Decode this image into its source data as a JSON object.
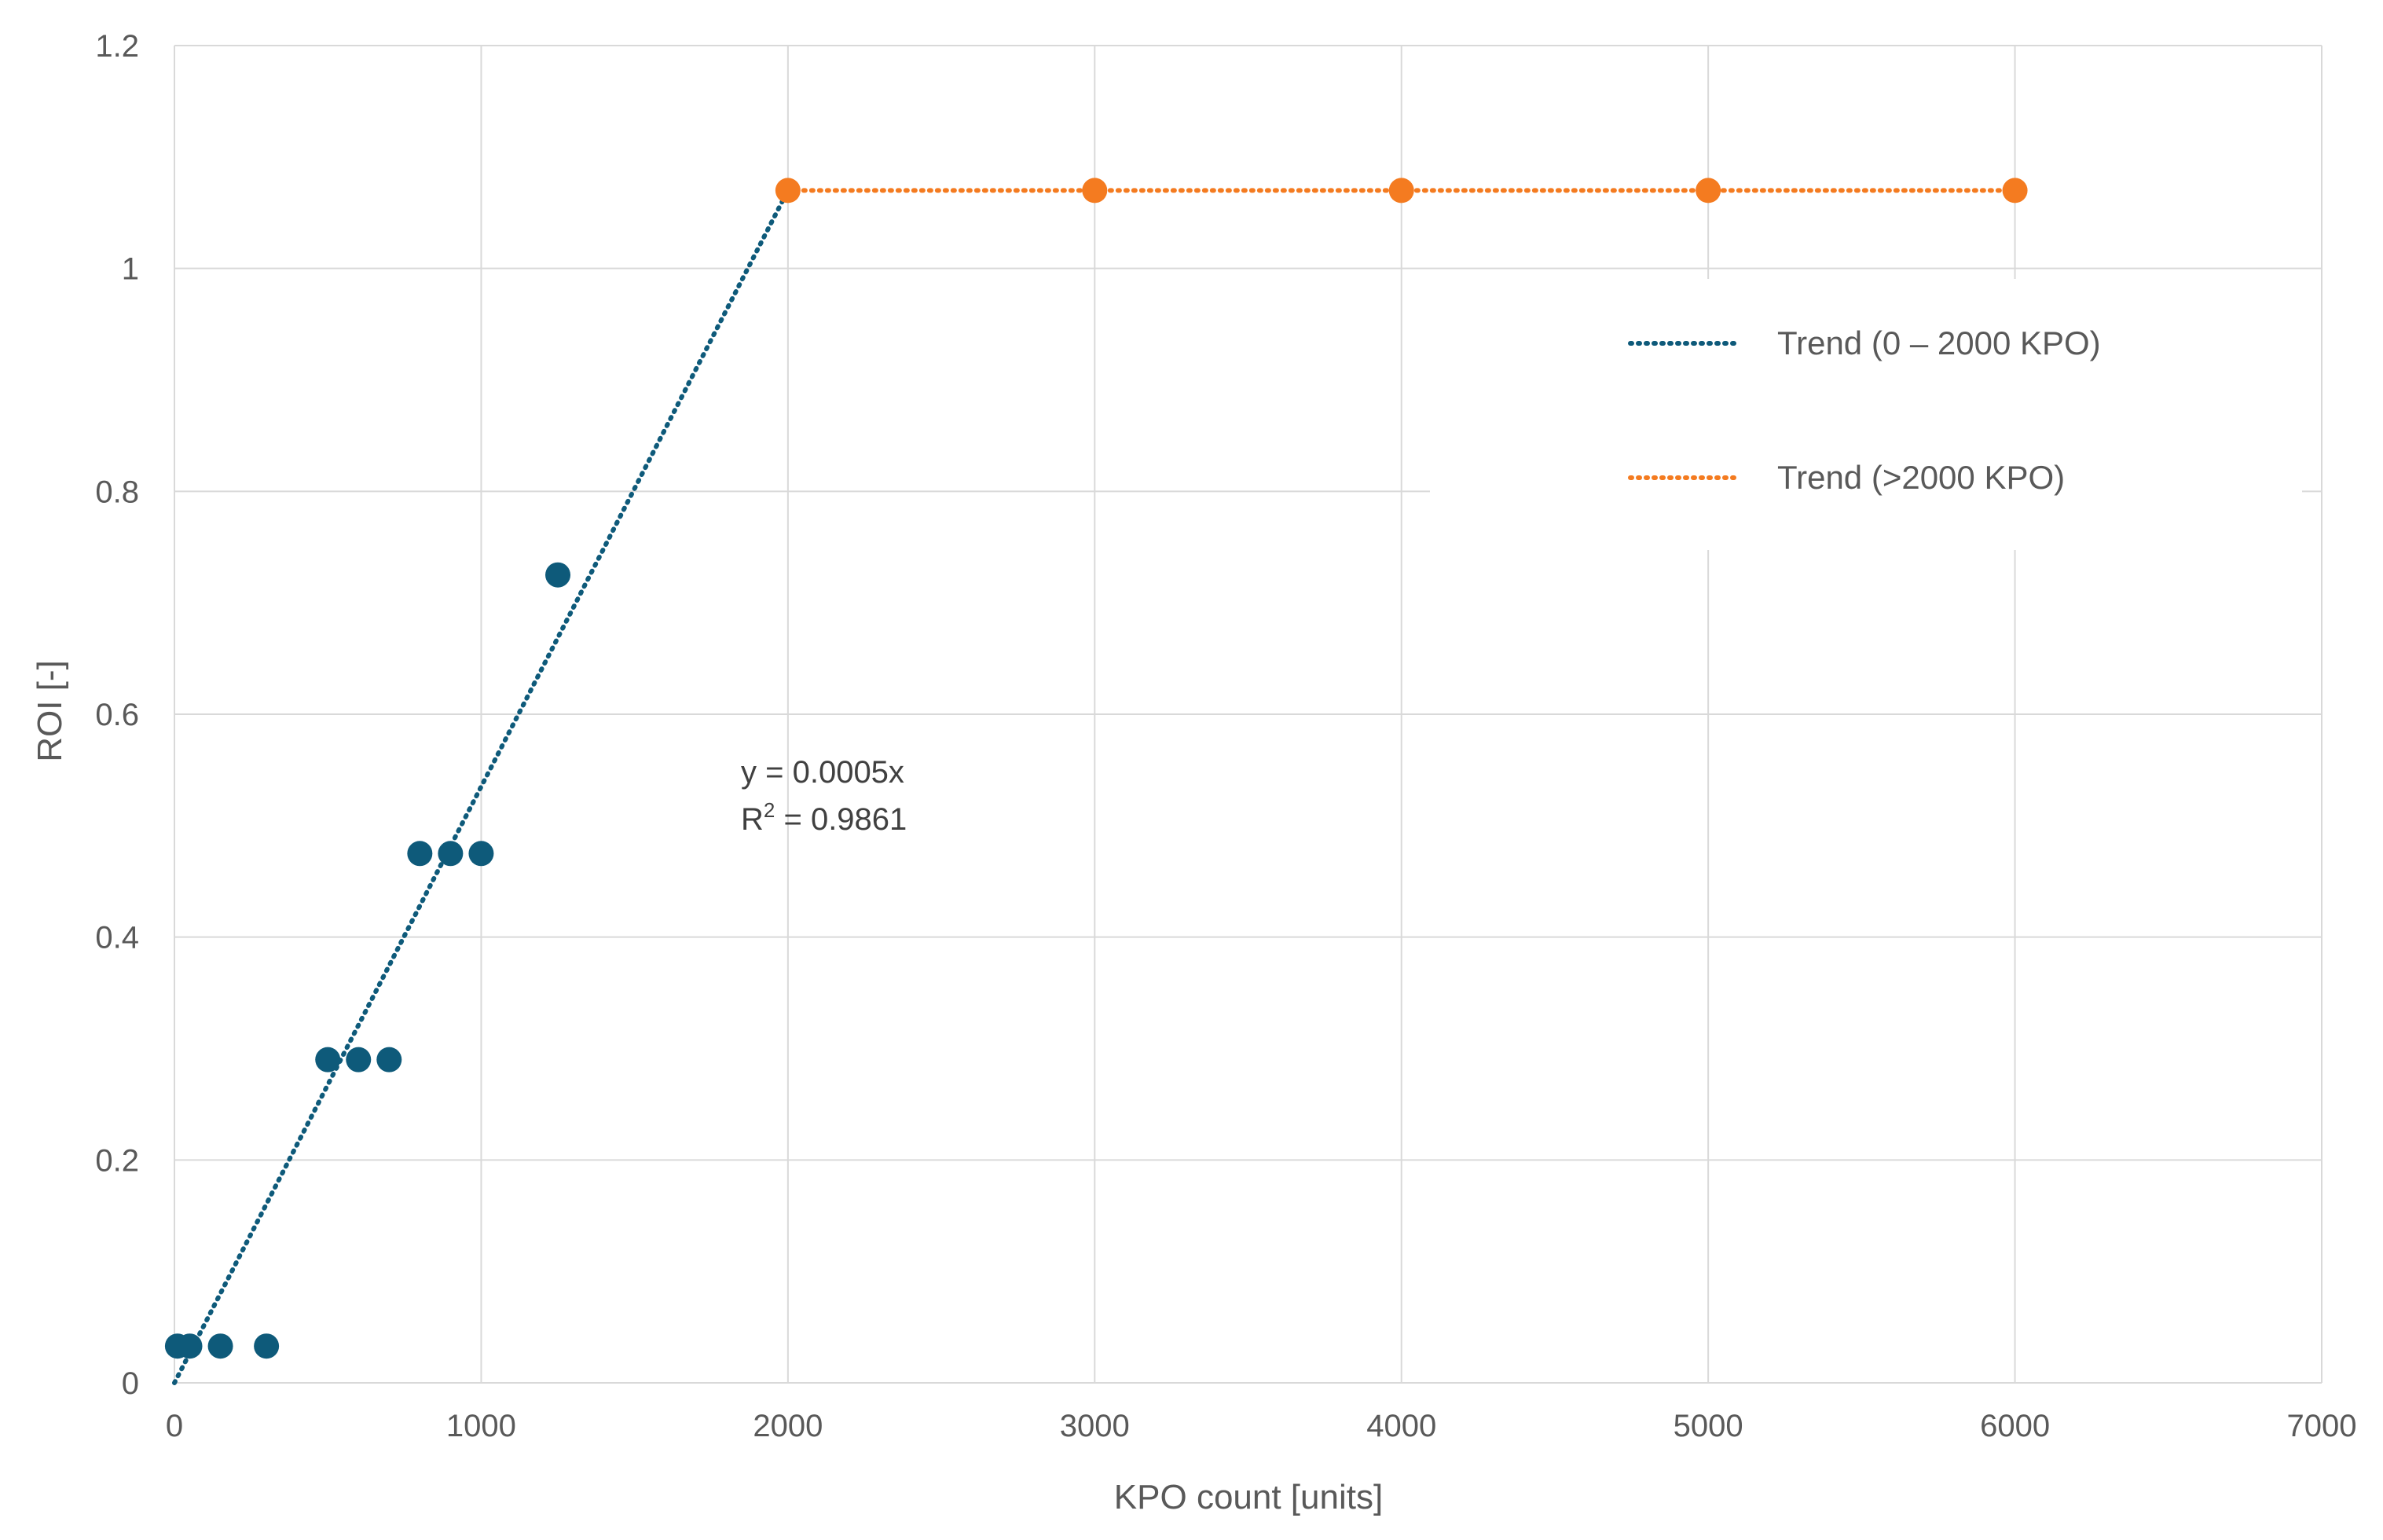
{
  "chart_data": {
    "type": "scatter",
    "title": "",
    "xlabel": "KPO count [units]",
    "ylabel": "ROI [-]",
    "xlim": [
      0,
      7000
    ],
    "ylim": [
      0,
      1.2
    ],
    "x_ticks": [
      "0",
      "1000",
      "2000",
      "3000",
      "4000",
      "5000",
      "6000",
      "7000"
    ],
    "y_ticks": [
      "0",
      "0.2",
      "0.4",
      "0.6",
      "0.8",
      "1",
      "1.2"
    ],
    "grid": true,
    "legend_position": "top-right",
    "colors": {
      "blue": "#0e5a7a",
      "orange": "#f47b20",
      "grid": "#d9d9d9"
    },
    "series": [
      {
        "color": "#0e5a7a",
        "points": [
          [
            10,
            0.033
          ],
          [
            50,
            0.033
          ],
          [
            150,
            0.033
          ],
          [
            300,
            0.033
          ],
          [
            500,
            0.29
          ],
          [
            600,
            0.29
          ],
          [
            700,
            0.29
          ],
          [
            800,
            0.475
          ],
          [
            900,
            0.475
          ],
          [
            1000,
            0.475
          ],
          [
            1250,
            0.725
          ]
        ]
      },
      {
        "color": "#f47b20",
        "points": [
          [
            2000,
            1.07
          ],
          [
            3000,
            1.07
          ],
          [
            4000,
            1.07
          ],
          [
            5000,
            1.07
          ],
          [
            6000,
            1.07
          ]
        ]
      }
    ],
    "trendlines": [
      {
        "name": "Trend (0 – 2000 KPO)",
        "color": "#0e5a7a",
        "from": [
          0,
          0
        ],
        "to": [
          2000,
          1.07
        ]
      },
      {
        "name": "Trend (>2000 KPO)",
        "color": "#f47b20",
        "from": [
          2000,
          1.07
        ],
        "to": [
          6000,
          1.07
        ]
      }
    ],
    "annotation": {
      "equation": "y = 0.0005x",
      "r2_prefix": "R",
      "r2_sup": "2",
      "r2_value": " = 0.9861"
    }
  }
}
